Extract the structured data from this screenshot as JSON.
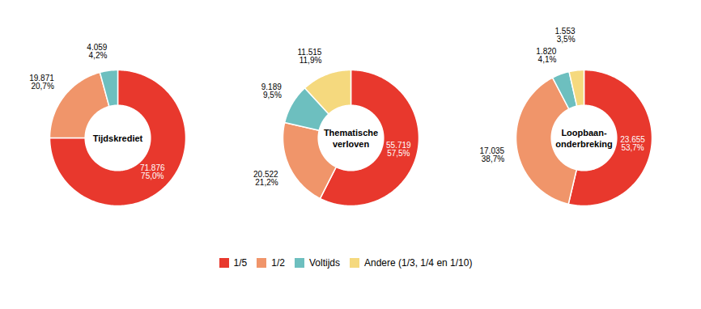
{
  "chart_data": [
    {
      "type": "pie",
      "title": "Tijdskrediet",
      "categories": [
        "1/5",
        "1/2",
        "Voltijds"
      ],
      "values": [
        71876,
        19871,
        4059
      ],
      "value_labels": [
        "71.876\n75,0%",
        "19.871\n20,7%",
        "4.059\n4,2%"
      ],
      "percentages": [
        75.0,
        20.7,
        4.2
      ],
      "colors": [
        "#e8382d",
        "#f0956a",
        "#6dbfbf"
      ],
      "legend": "bottom"
    },
    {
      "type": "pie",
      "title": "Thematische\nverloven",
      "categories": [
        "1/5",
        "1/2",
        "Voltijds",
        "Andere (1/3, 1/4 en 1/10)"
      ],
      "values": [
        55719,
        20522,
        9189,
        11515
      ],
      "value_labels": [
        "55.719\n57,5%",
        "20.522\n21,2%",
        "9.189\n9,5%",
        "11.515\n11,9%"
      ],
      "percentages": [
        57.5,
        21.2,
        9.5,
        11.9
      ],
      "colors": [
        "#e8382d",
        "#f0956a",
        "#6dbfbf",
        "#f5d97e"
      ],
      "legend": "bottom"
    },
    {
      "type": "pie",
      "title": "Loopbaan-\nonderbreking",
      "categories": [
        "1/5",
        "1/2",
        "Voltijds",
        "Andere (1/3, 1/4 en 1/10)"
      ],
      "values": [
        23655,
        17035,
        1820,
        1553
      ],
      "value_labels": [
        "23.655\n53,7%",
        "17.035\n38,7%",
        "1.820\n4,1%",
        "1.553\n3,5%"
      ],
      "percentages": [
        53.7,
        38.7,
        4.1,
        3.5
      ],
      "colors": [
        "#e8382d",
        "#f0956a",
        "#6dbfbf",
        "#f5d97e"
      ],
      "legend": "bottom"
    }
  ]
}
